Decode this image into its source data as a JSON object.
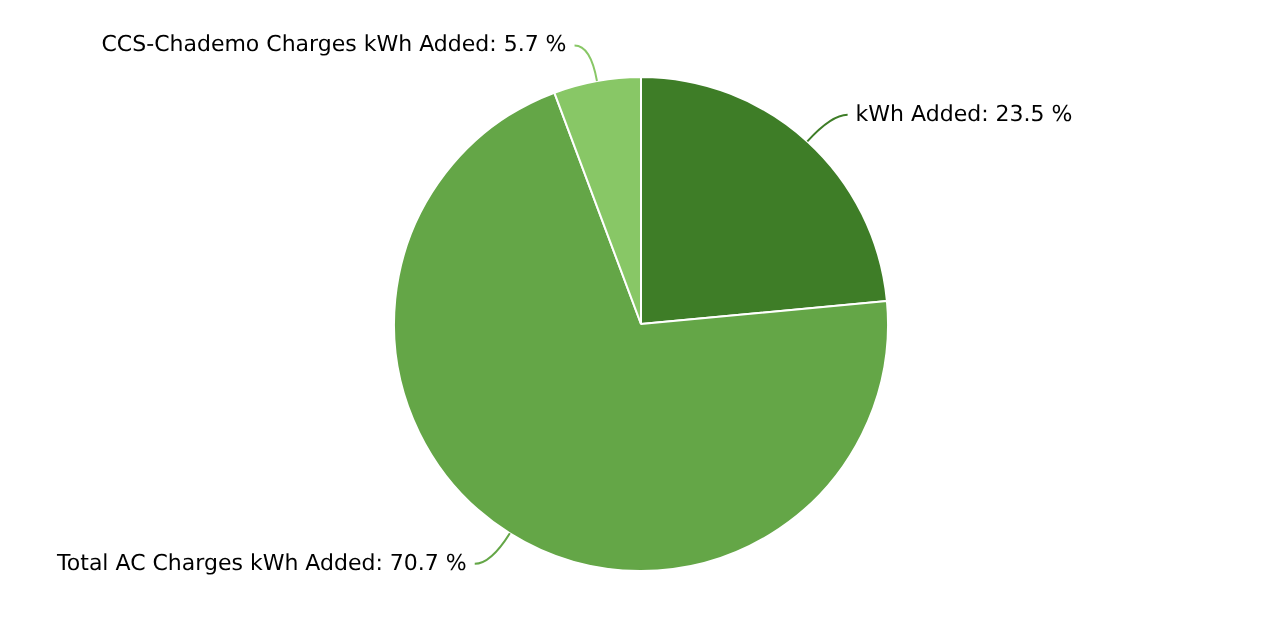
{
  "chart_data": {
    "type": "pie",
    "categories": [
      "kWh Added",
      "Total AC Charges kWh Added",
      "CCS-Chademo Charges kWh Added"
    ],
    "values": [
      23.5,
      70.7,
      5.7
    ],
    "value_labels": [
      "23.5 %",
      "70.7 %",
      "5.7 %"
    ],
    "colors": [
      "#3e7d27",
      "#64a647",
      "#88c766"
    ],
    "legend": false
  }
}
